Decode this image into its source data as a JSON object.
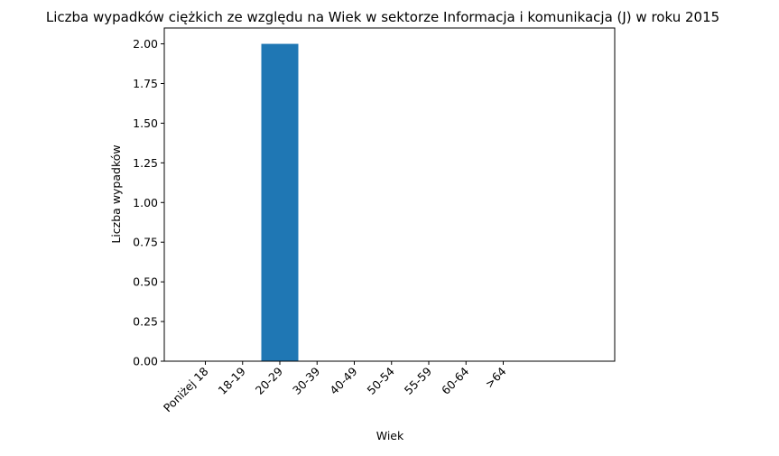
{
  "chart_data": {
    "type": "bar",
    "title": "Liczba wypadków ciężkich ze względu na Wiek w sektorze Informacja i komunikacja (J)   w roku 2015",
    "xlabel": "Wiek",
    "ylabel": "Liczba wypadków",
    "categories": [
      "Poniżej 18",
      "18-19",
      "20-29",
      "30-39",
      "40-49",
      "50-54",
      "55-59",
      "60-64",
      ">64"
    ],
    "values": [
      0,
      0,
      2,
      0,
      0,
      0,
      0,
      0,
      0
    ],
    "ylim": [
      0,
      2.1
    ],
    "yticks": [
      "0.00",
      "0.25",
      "0.50",
      "0.75",
      "1.00",
      "1.25",
      "1.50",
      "1.75",
      "2.00"
    ],
    "bar_color": "#1f77b4",
    "grid": false,
    "legend": "none"
  }
}
